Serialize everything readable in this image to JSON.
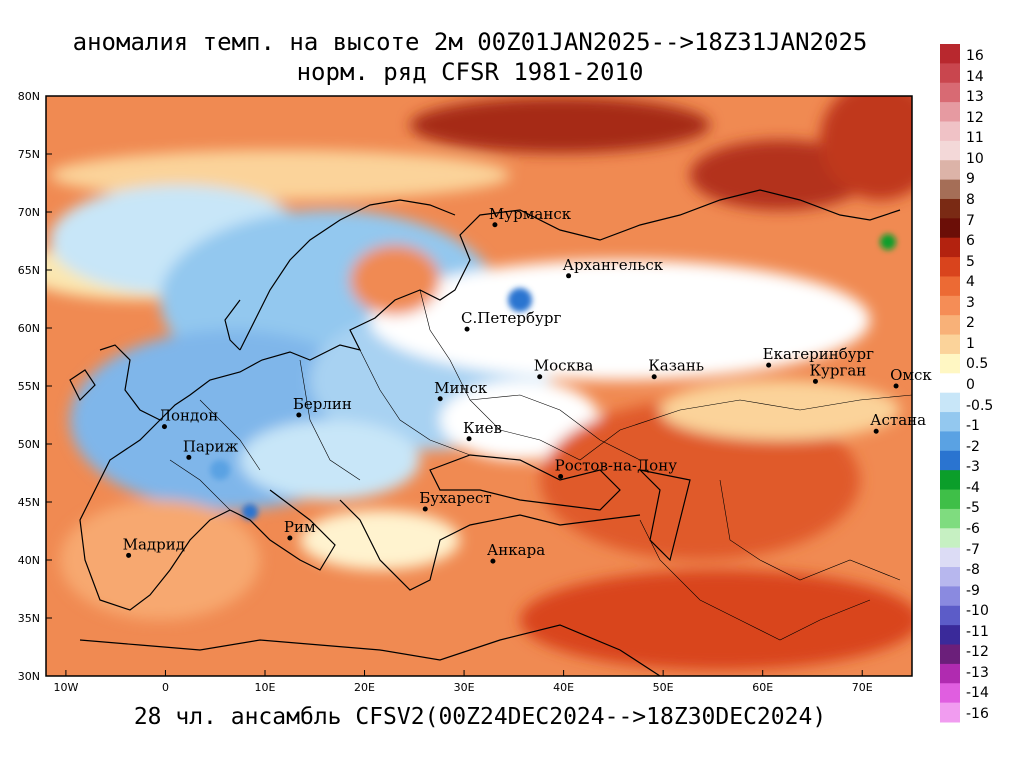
{
  "title_line1": "аномалия темп. на высоте 2м 00Z01JAN2025-->18Z31JAN2025",
  "title_line2": "норм. ряд CFSR 1981-2010",
  "footer": "28 чл. ансамбль CFSV2(00Z24DEC2024-->18Z30DEC2024)",
  "lat_labels": [
    "80N",
    "75N",
    "70N",
    "65N",
    "60N",
    "55N",
    "50N",
    "45N",
    "40N",
    "35N",
    "30N"
  ],
  "lon_labels": [
    "10W",
    "0",
    "10E",
    "20E",
    "30E",
    "40E",
    "50E",
    "60E",
    "70E"
  ],
  "cities": [
    {
      "name": "Мурманск",
      "lon": 33.1,
      "lat": 68.9
    },
    {
      "name": "Архангельск",
      "lon": 40.5,
      "lat": 64.5
    },
    {
      "name": "С.Петербург",
      "lon": 30.3,
      "lat": 59.9
    },
    {
      "name": "Москва",
      "lon": 37.6,
      "lat": 55.8
    },
    {
      "name": "Казань",
      "lon": 49.1,
      "lat": 55.8
    },
    {
      "name": "Екатеринбург",
      "lon": 60.6,
      "lat": 56.8
    },
    {
      "name": "Курган",
      "lon": 65.3,
      "lat": 55.4
    },
    {
      "name": "Омск",
      "lon": 73.4,
      "lat": 55.0
    },
    {
      "name": "Астана",
      "lon": 71.4,
      "lat": 51.1
    },
    {
      "name": "Минск",
      "lon": 27.6,
      "lat": 53.9
    },
    {
      "name": "Берлин",
      "lon": 13.4,
      "lat": 52.5
    },
    {
      "name": "Лондон",
      "lon": -0.1,
      "lat": 51.5
    },
    {
      "name": "Париж",
      "lon": 2.35,
      "lat": 48.85
    },
    {
      "name": "Киев",
      "lon": 30.5,
      "lat": 50.45
    },
    {
      "name": "Ростов-на-Дону",
      "lon": 39.7,
      "lat": 47.2
    },
    {
      "name": "Бухарест",
      "lon": 26.1,
      "lat": 44.4
    },
    {
      "name": "Рим",
      "lon": 12.5,
      "lat": 41.9
    },
    {
      "name": "Мадрид",
      "lon": -3.7,
      "lat": 40.4
    },
    {
      "name": "Анкара",
      "lon": 32.9,
      "lat": 39.9
    }
  ],
  "colorbar": {
    "levels": [
      "16",
      "14",
      "13",
      "12",
      "11",
      "10",
      "9",
      "8",
      "7",
      "6",
      "5",
      "4",
      "3",
      "2",
      "1",
      "0.5",
      "0",
      "-0.5",
      "-1",
      "-2",
      "-3",
      "-4",
      "-5",
      "-6",
      "-7",
      "-8",
      "-9",
      "-10",
      "-11",
      "-12",
      "-13",
      "-14",
      "-16"
    ],
    "colors": [
      "#b8282e",
      "#c9464e",
      "#d86a73",
      "#e69aa1",
      "#f0c2c6",
      "#f3d8d8",
      "#dcb3a8",
      "#a56e57",
      "#7a2a14",
      "#6b0e07",
      "#b3220f",
      "#d9441d",
      "#ec6a34",
      "#f58d56",
      "#f8b178",
      "#fbd39a",
      "#fff7c3",
      "#ffffff",
      "#c8e6f8",
      "#93c8ef",
      "#5aa2e3",
      "#2a74d0",
      "#0b9e2a",
      "#3fbf48",
      "#7fdc7f",
      "#c6f0c2",
      "#dcdcf5",
      "#b7b7ee",
      "#8a8ae0",
      "#5c5cc8",
      "#3a2a9a",
      "#6b1f7a",
      "#b02bb0",
      "#e05ee0",
      "#f19cf0"
    ]
  },
  "extent": {
    "lon_min": -12,
    "lon_max": 75,
    "lat_min": 30,
    "lat_max": 80
  }
}
